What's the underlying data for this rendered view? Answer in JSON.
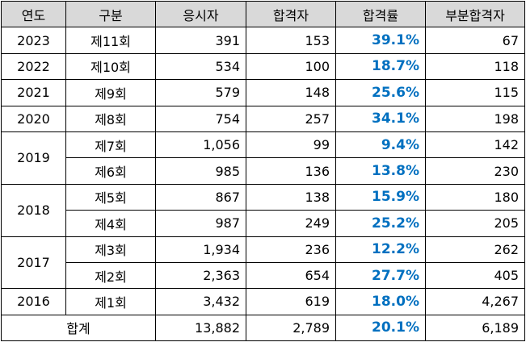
{
  "headers": [
    "연도",
    "구분",
    "응시자",
    "합격자",
    "합격률",
    "부분합격자"
  ],
  "rows": [
    {
      "year": "2023",
      "round": "제11회",
      "applicants": "391",
      "passed": "153",
      "rate": "39.1%",
      "partial": "67"
    },
    {
      "year": "2022",
      "round": "제10회",
      "applicants": "534",
      "passed": "100",
      "rate": "18.7%",
      "partial": "118"
    },
    {
      "year": "2021",
      "round": "제9회",
      "applicants": "579",
      "passed": "148",
      "rate": "25.6%",
      "partial": "115"
    },
    {
      "year": "2020",
      "round": "제8회",
      "applicants": "754",
      "passed": "257",
      "rate": "34.1%",
      "partial": "198"
    },
    {
      "year": "2019",
      "round": "제7회",
      "applicants": "1,056",
      "passed": "99",
      "rate": "9.4%",
      "partial": "142"
    },
    {
      "year": "",
      "round": "제6회",
      "applicants": "985",
      "passed": "136",
      "rate": "13.8%",
      "partial": "230"
    },
    {
      "year": "2018",
      "round": "제5회",
      "applicants": "867",
      "passed": "138",
      "rate": "15.9%",
      "partial": "180"
    },
    {
      "year": "",
      "round": "제4회",
      "applicants": "987",
      "passed": "249",
      "rate": "25.2%",
      "partial": "205"
    },
    {
      "year": "2017",
      "round": "제3회",
      "applicants": "1,934",
      "passed": "236",
      "rate": "12.2%",
      "partial": "262"
    },
    {
      "year": "",
      "round": "제2회",
      "applicants": "2,363",
      "passed": "654",
      "rate": "27.7%",
      "partial": "405"
    },
    {
      "year": "2016",
      "round": "제1회",
      "applicants": "3,432",
      "passed": "619",
      "rate": "18.0%",
      "partial": "4,267"
    }
  ],
  "total": {
    "label": "합계",
    "applicants": "13,882",
    "passed": "2,789",
    "rate": "20.1%",
    "partial": "6,189"
  },
  "colors": {
    "header_bg": "#d9d9d9",
    "rate_text": "#0070c0"
  }
}
